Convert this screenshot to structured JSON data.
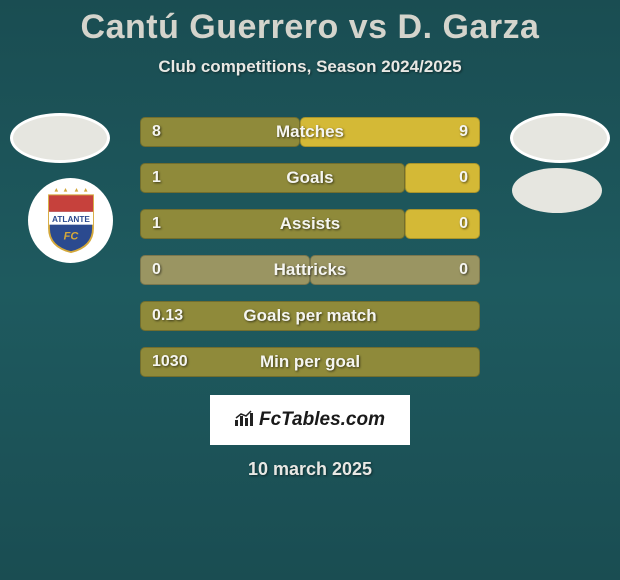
{
  "title": {
    "player1": "Cantú Guerrero",
    "vs": "vs",
    "player2": "D. Garza"
  },
  "subtitle": "Club competitions, Season 2024/2025",
  "date": "10 march 2025",
  "brand": {
    "text": "FcTables.com"
  },
  "colors": {
    "bar_olive": "#8f8a3a",
    "bar_yellow": "#d4b936",
    "bar_off": "#9a9562"
  },
  "stats": [
    {
      "label": "Matches",
      "left_val": "8",
      "right_val": "9",
      "left_pct": 47,
      "right_pct": 53,
      "left_color": "#8f8a3a",
      "right_color": "#d4b936"
    },
    {
      "label": "Goals",
      "left_val": "1",
      "right_val": "0",
      "left_pct": 78,
      "right_pct": 22,
      "left_color": "#8f8a3a",
      "right_color": "#d4b936"
    },
    {
      "label": "Assists",
      "left_val": "1",
      "right_val": "0",
      "left_pct": 78,
      "right_pct": 22,
      "left_color": "#8f8a3a",
      "right_color": "#d4b936"
    },
    {
      "label": "Hattricks",
      "left_val": "0",
      "right_val": "0",
      "left_pct": 50,
      "right_pct": 50,
      "left_color": "#9a9562",
      "right_color": "#9a9562"
    },
    {
      "label": "Goals per match",
      "left_val": "0.13",
      "right_val": "",
      "left_pct": 100,
      "right_pct": 0,
      "left_color": "#8f8a3a",
      "right_color": "#d4b936"
    },
    {
      "label": "Min per goal",
      "left_val": "1030",
      "right_val": "",
      "left_pct": 100,
      "right_pct": 0,
      "left_color": "#8f8a3a",
      "right_color": "#d4b936"
    }
  ],
  "club_left": {
    "stars_color": "#d4a83a",
    "top_band": "#c6413c",
    "text": "ATLANTE",
    "text_bg": "#ffffff",
    "text_color": "#2b4a8f",
    "bottom_band": "#2b4a8f",
    "fc_text": "FC",
    "fc_color": "#d4a83a"
  }
}
